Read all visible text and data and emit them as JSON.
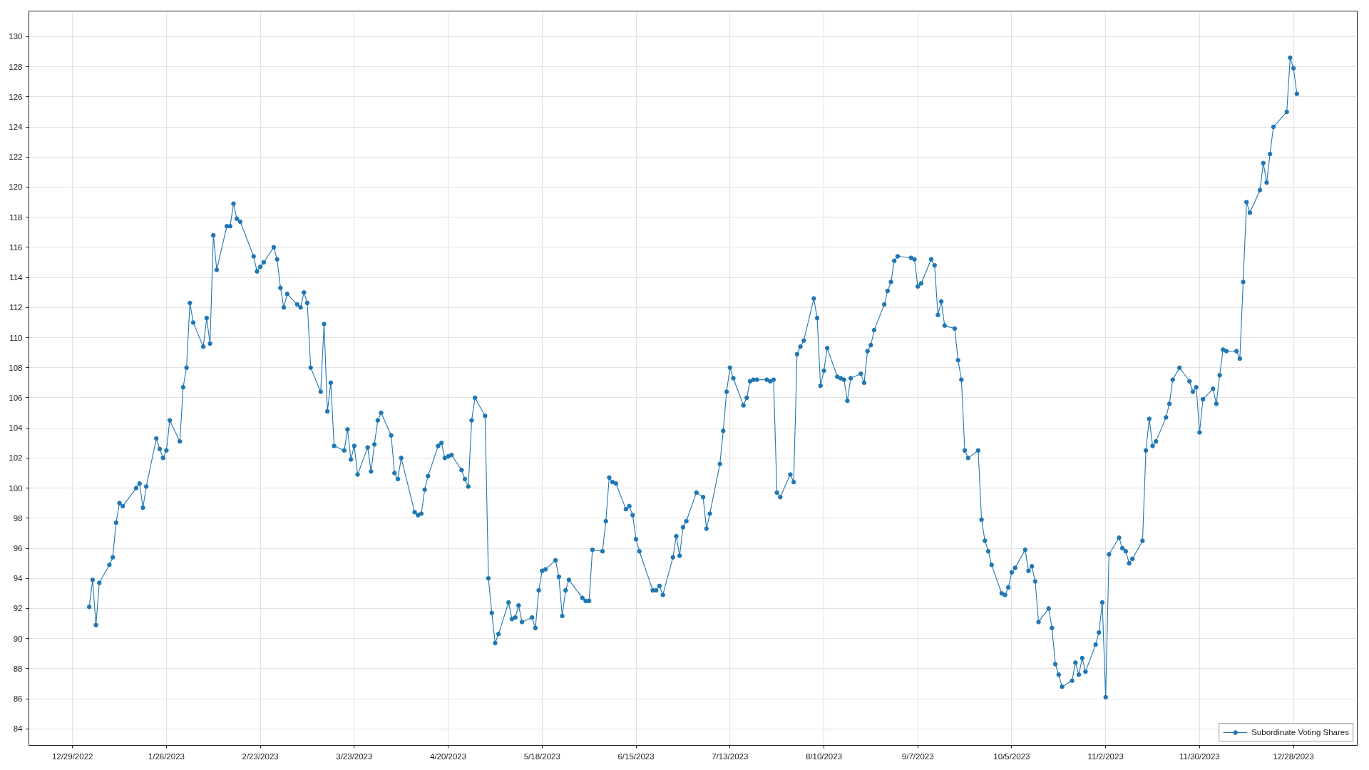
{
  "chart_data": {
    "type": "line",
    "x": [
      "2023-01-03",
      "2023-01-04",
      "2023-01-05",
      "2023-01-06",
      "2023-01-09",
      "2023-01-10",
      "2023-01-11",
      "2023-01-12",
      "2023-01-13",
      "2023-01-17",
      "2023-01-18",
      "2023-01-19",
      "2023-01-20",
      "2023-01-23",
      "2023-01-24",
      "2023-01-25",
      "2023-01-26",
      "2023-01-27",
      "2023-01-30",
      "2023-01-31",
      "2023-02-01",
      "2023-02-02",
      "2023-02-03",
      "2023-02-06",
      "2023-02-07",
      "2023-02-08",
      "2023-02-09",
      "2023-02-10",
      "2023-02-13",
      "2023-02-14",
      "2023-02-15",
      "2023-02-16",
      "2023-02-17",
      "2023-02-21",
      "2023-02-22",
      "2023-02-23",
      "2023-02-24",
      "2023-02-27",
      "2023-02-28",
      "2023-03-01",
      "2023-03-02",
      "2023-03-03",
      "2023-03-06",
      "2023-03-07",
      "2023-03-08",
      "2023-03-09",
      "2023-03-10",
      "2023-03-13",
      "2023-03-14",
      "2023-03-15",
      "2023-03-16",
      "2023-03-17",
      "2023-03-20",
      "2023-03-21",
      "2023-03-22",
      "2023-03-23",
      "2023-03-24",
      "2023-03-27",
      "2023-03-28",
      "2023-03-29",
      "2023-03-30",
      "2023-03-31",
      "2023-04-03",
      "2023-04-04",
      "2023-04-05",
      "2023-04-06",
      "2023-04-10",
      "2023-04-11",
      "2023-04-12",
      "2023-04-13",
      "2023-04-14",
      "2023-04-17",
      "2023-04-18",
      "2023-04-19",
      "2023-04-20",
      "2023-04-21",
      "2023-04-24",
      "2023-04-25",
      "2023-04-26",
      "2023-04-27",
      "2023-04-28",
      "2023-05-01",
      "2023-05-02",
      "2023-05-03",
      "2023-05-04",
      "2023-05-05",
      "2023-05-08",
      "2023-05-09",
      "2023-05-10",
      "2023-05-11",
      "2023-05-12",
      "2023-05-15",
      "2023-05-16",
      "2023-05-17",
      "2023-05-18",
      "2023-05-19",
      "2023-05-22",
      "2023-05-23",
      "2023-05-24",
      "2023-05-25",
      "2023-05-26",
      "2023-05-30",
      "2023-05-31",
      "2023-06-01",
      "2023-06-02",
      "2023-06-05",
      "2023-06-06",
      "2023-06-07",
      "2023-06-08",
      "2023-06-09",
      "2023-06-12",
      "2023-06-13",
      "2023-06-14",
      "2023-06-15",
      "2023-06-16",
      "2023-06-20",
      "2023-06-21",
      "2023-06-22",
      "2023-06-23",
      "2023-06-26",
      "2023-06-27",
      "2023-06-28",
      "2023-06-29",
      "2023-06-30",
      "2023-07-03",
      "2023-07-05",
      "2023-07-06",
      "2023-07-07",
      "2023-07-10",
      "2023-07-11",
      "2023-07-12",
      "2023-07-13",
      "2023-07-14",
      "2023-07-17",
      "2023-07-18",
      "2023-07-19",
      "2023-07-20",
      "2023-07-21",
      "2023-07-24",
      "2023-07-25",
      "2023-07-26",
      "2023-07-27",
      "2023-07-28",
      "2023-07-31",
      "2023-08-01",
      "2023-08-02",
      "2023-08-03",
      "2023-08-04",
      "2023-08-07",
      "2023-08-08",
      "2023-08-09",
      "2023-08-10",
      "2023-08-11",
      "2023-08-14",
      "2023-08-15",
      "2023-08-16",
      "2023-08-17",
      "2023-08-18",
      "2023-08-21",
      "2023-08-22",
      "2023-08-23",
      "2023-08-24",
      "2023-08-25",
      "2023-08-28",
      "2023-08-29",
      "2023-08-30",
      "2023-08-31",
      "2023-09-01",
      "2023-09-05",
      "2023-09-06",
      "2023-09-07",
      "2023-09-08",
      "2023-09-11",
      "2023-09-12",
      "2023-09-13",
      "2023-09-14",
      "2023-09-15",
      "2023-09-18",
      "2023-09-19",
      "2023-09-20",
      "2023-09-21",
      "2023-09-22",
      "2023-09-25",
      "2023-09-26",
      "2023-09-27",
      "2023-09-28",
      "2023-09-29",
      "2023-10-02",
      "2023-10-03",
      "2023-10-04",
      "2023-10-05",
      "2023-10-06",
      "2023-10-09",
      "2023-10-10",
      "2023-10-11",
      "2023-10-12",
      "2023-10-13",
      "2023-10-16",
      "2023-10-17",
      "2023-10-18",
      "2023-10-19",
      "2023-10-20",
      "2023-10-23",
      "2023-10-24",
      "2023-10-25",
      "2023-10-26",
      "2023-10-27",
      "2023-10-30",
      "2023-10-31",
      "2023-11-01",
      "2023-11-02",
      "2023-11-03",
      "2023-11-06",
      "2023-11-07",
      "2023-11-08",
      "2023-11-09",
      "2023-11-10",
      "2023-11-13",
      "2023-11-14",
      "2023-11-15",
      "2023-11-16",
      "2023-11-17",
      "2023-11-20",
      "2023-11-21",
      "2023-11-22",
      "2023-11-24",
      "2023-11-27",
      "2023-11-28",
      "2023-11-29",
      "2023-11-30",
      "2023-12-01",
      "2023-12-04",
      "2023-12-05",
      "2023-12-06",
      "2023-12-07",
      "2023-12-08",
      "2023-12-11",
      "2023-12-12",
      "2023-12-13",
      "2023-12-14",
      "2023-12-15",
      "2023-12-18",
      "2023-12-19",
      "2023-12-20",
      "2023-12-21",
      "2023-12-22",
      "2023-12-26",
      "2023-12-27",
      "2023-12-28",
      "2023-12-29"
    ],
    "series": [
      {
        "name": "Subordinate Voting Shares",
        "color": "#1f77b4",
        "values": [
          92.1,
          93.9,
          90.9,
          93.7,
          94.9,
          95.4,
          97.7,
          99.0,
          98.8,
          100.0,
          100.3,
          98.7,
          100.1,
          103.3,
          102.6,
          102.0,
          102.5,
          104.5,
          103.1,
          106.7,
          108.0,
          112.3,
          111.0,
          109.4,
          111.3,
          109.6,
          116.8,
          114.5,
          117.4,
          117.4,
          118.9,
          117.9,
          117.7,
          115.4,
          114.4,
          114.7,
          115.0,
          116.0,
          115.2,
          113.3,
          112.0,
          112.9,
          112.2,
          112.0,
          113.0,
          112.3,
          108.0,
          106.4,
          110.9,
          105.1,
          107.0,
          102.8,
          102.5,
          103.9,
          101.9,
          102.8,
          100.9,
          102.7,
          101.1,
          102.9,
          104.5,
          105.0,
          103.5,
          101.0,
          100.6,
          102.0,
          98.4,
          98.2,
          98.3,
          99.9,
          100.8,
          102.8,
          103.0,
          102.0,
          102.1,
          102.2,
          101.2,
          100.6,
          100.1,
          104.5,
          106.0,
          104.8,
          94.0,
          91.7,
          89.7,
          90.3,
          92.4,
          91.3,
          91.4,
          92.2,
          91.1,
          91.4,
          90.7,
          93.2,
          94.5,
          94.6,
          95.2,
          94.1,
          91.5,
          93.2,
          93.9,
          92.7,
          92.5,
          92.5,
          95.9,
          95.8,
          97.8,
          100.7,
          100.4,
          100.3,
          98.6,
          98.8,
          98.2,
          96.6,
          95.8,
          93.2,
          93.2,
          93.5,
          92.9,
          95.4,
          96.8,
          95.5,
          97.4,
          97.8,
          99.7,
          99.4,
          97.3,
          98.3,
          101.6,
          103.8,
          106.4,
          108.0,
          107.3,
          105.5,
          106.0,
          107.1,
          107.2,
          107.2,
          107.2,
          107.1,
          107.2,
          99.7,
          99.4,
          100.9,
          100.4,
          108.9,
          109.4,
          109.8,
          112.6,
          111.3,
          106.8,
          107.8,
          109.3,
          107.4,
          107.3,
          107.2,
          105.8,
          107.3,
          107.6,
          107.0,
          109.1,
          109.5,
          110.5,
          112.2,
          113.1,
          113.7,
          115.1,
          115.4,
          115.3,
          115.2,
          113.4,
          113.6,
          115.2,
          114.8,
          111.5,
          112.4,
          110.8,
          110.6,
          108.5,
          107.2,
          102.5,
          102.0,
          102.5,
          97.9,
          96.5,
          95.8,
          94.9,
          93.0,
          92.9,
          93.4,
          94.4,
          94.7,
          95.9,
          94.5,
          94.8,
          93.8,
          91.1,
          92.0,
          90.7,
          88.3,
          87.6,
          86.8,
          87.2,
          88.4,
          87.6,
          88.7,
          87.8,
          89.6,
          90.4,
          92.4,
          86.1,
          95.6,
          96.7,
          96.0,
          95.8,
          95.0,
          95.3,
          96.5,
          102.5,
          104.6,
          102.8,
          103.1,
          104.7,
          105.6,
          107.2,
          108.0,
          107.1,
          106.4,
          106.7,
          103.7,
          105.9,
          106.6,
          105.6,
          107.5,
          109.2,
          109.1,
          109.1,
          108.6,
          113.7,
          119.0,
          118.3,
          119.8,
          121.6,
          120.3,
          122.2,
          124.0,
          125.0,
          128.6,
          127.9,
          126.2
        ]
      }
    ],
    "xlim": [
      "2022-12-16",
      "2024-01-16"
    ],
    "xticks": [
      {
        "value": "2022-12-29",
        "label": "12/29/2022"
      },
      {
        "value": "2023-01-26",
        "label": "1/26/2023"
      },
      {
        "value": "2023-02-23",
        "label": "2/23/2023"
      },
      {
        "value": "2023-03-23",
        "label": "3/23/2023"
      },
      {
        "value": "2023-04-20",
        "label": "4/20/2023"
      },
      {
        "value": "2023-05-18",
        "label": "5/18/2023"
      },
      {
        "value": "2023-06-15",
        "label": "6/15/2023"
      },
      {
        "value": "2023-07-13",
        "label": "7/13/2023"
      },
      {
        "value": "2023-08-10",
        "label": "8/10/2023"
      },
      {
        "value": "2023-09-07",
        "label": "9/7/2023"
      },
      {
        "value": "2023-10-05",
        "label": "10/5/2023"
      },
      {
        "value": "2023-11-02",
        "label": "11/2/2023"
      },
      {
        "value": "2023-11-30",
        "label": "11/30/2023"
      },
      {
        "value": "2023-12-28",
        "label": "12/28/2023"
      }
    ],
    "ylim": [
      82.9,
      131.7
    ],
    "yticks": [
      84,
      86,
      88,
      90,
      92,
      94,
      96,
      98,
      100,
      102,
      104,
      106,
      108,
      110,
      112,
      114,
      116,
      118,
      120,
      122,
      124,
      126,
      128,
      130
    ],
    "grid": true,
    "legend": "bottom right",
    "marker": "circle",
    "line_style": "solid"
  }
}
